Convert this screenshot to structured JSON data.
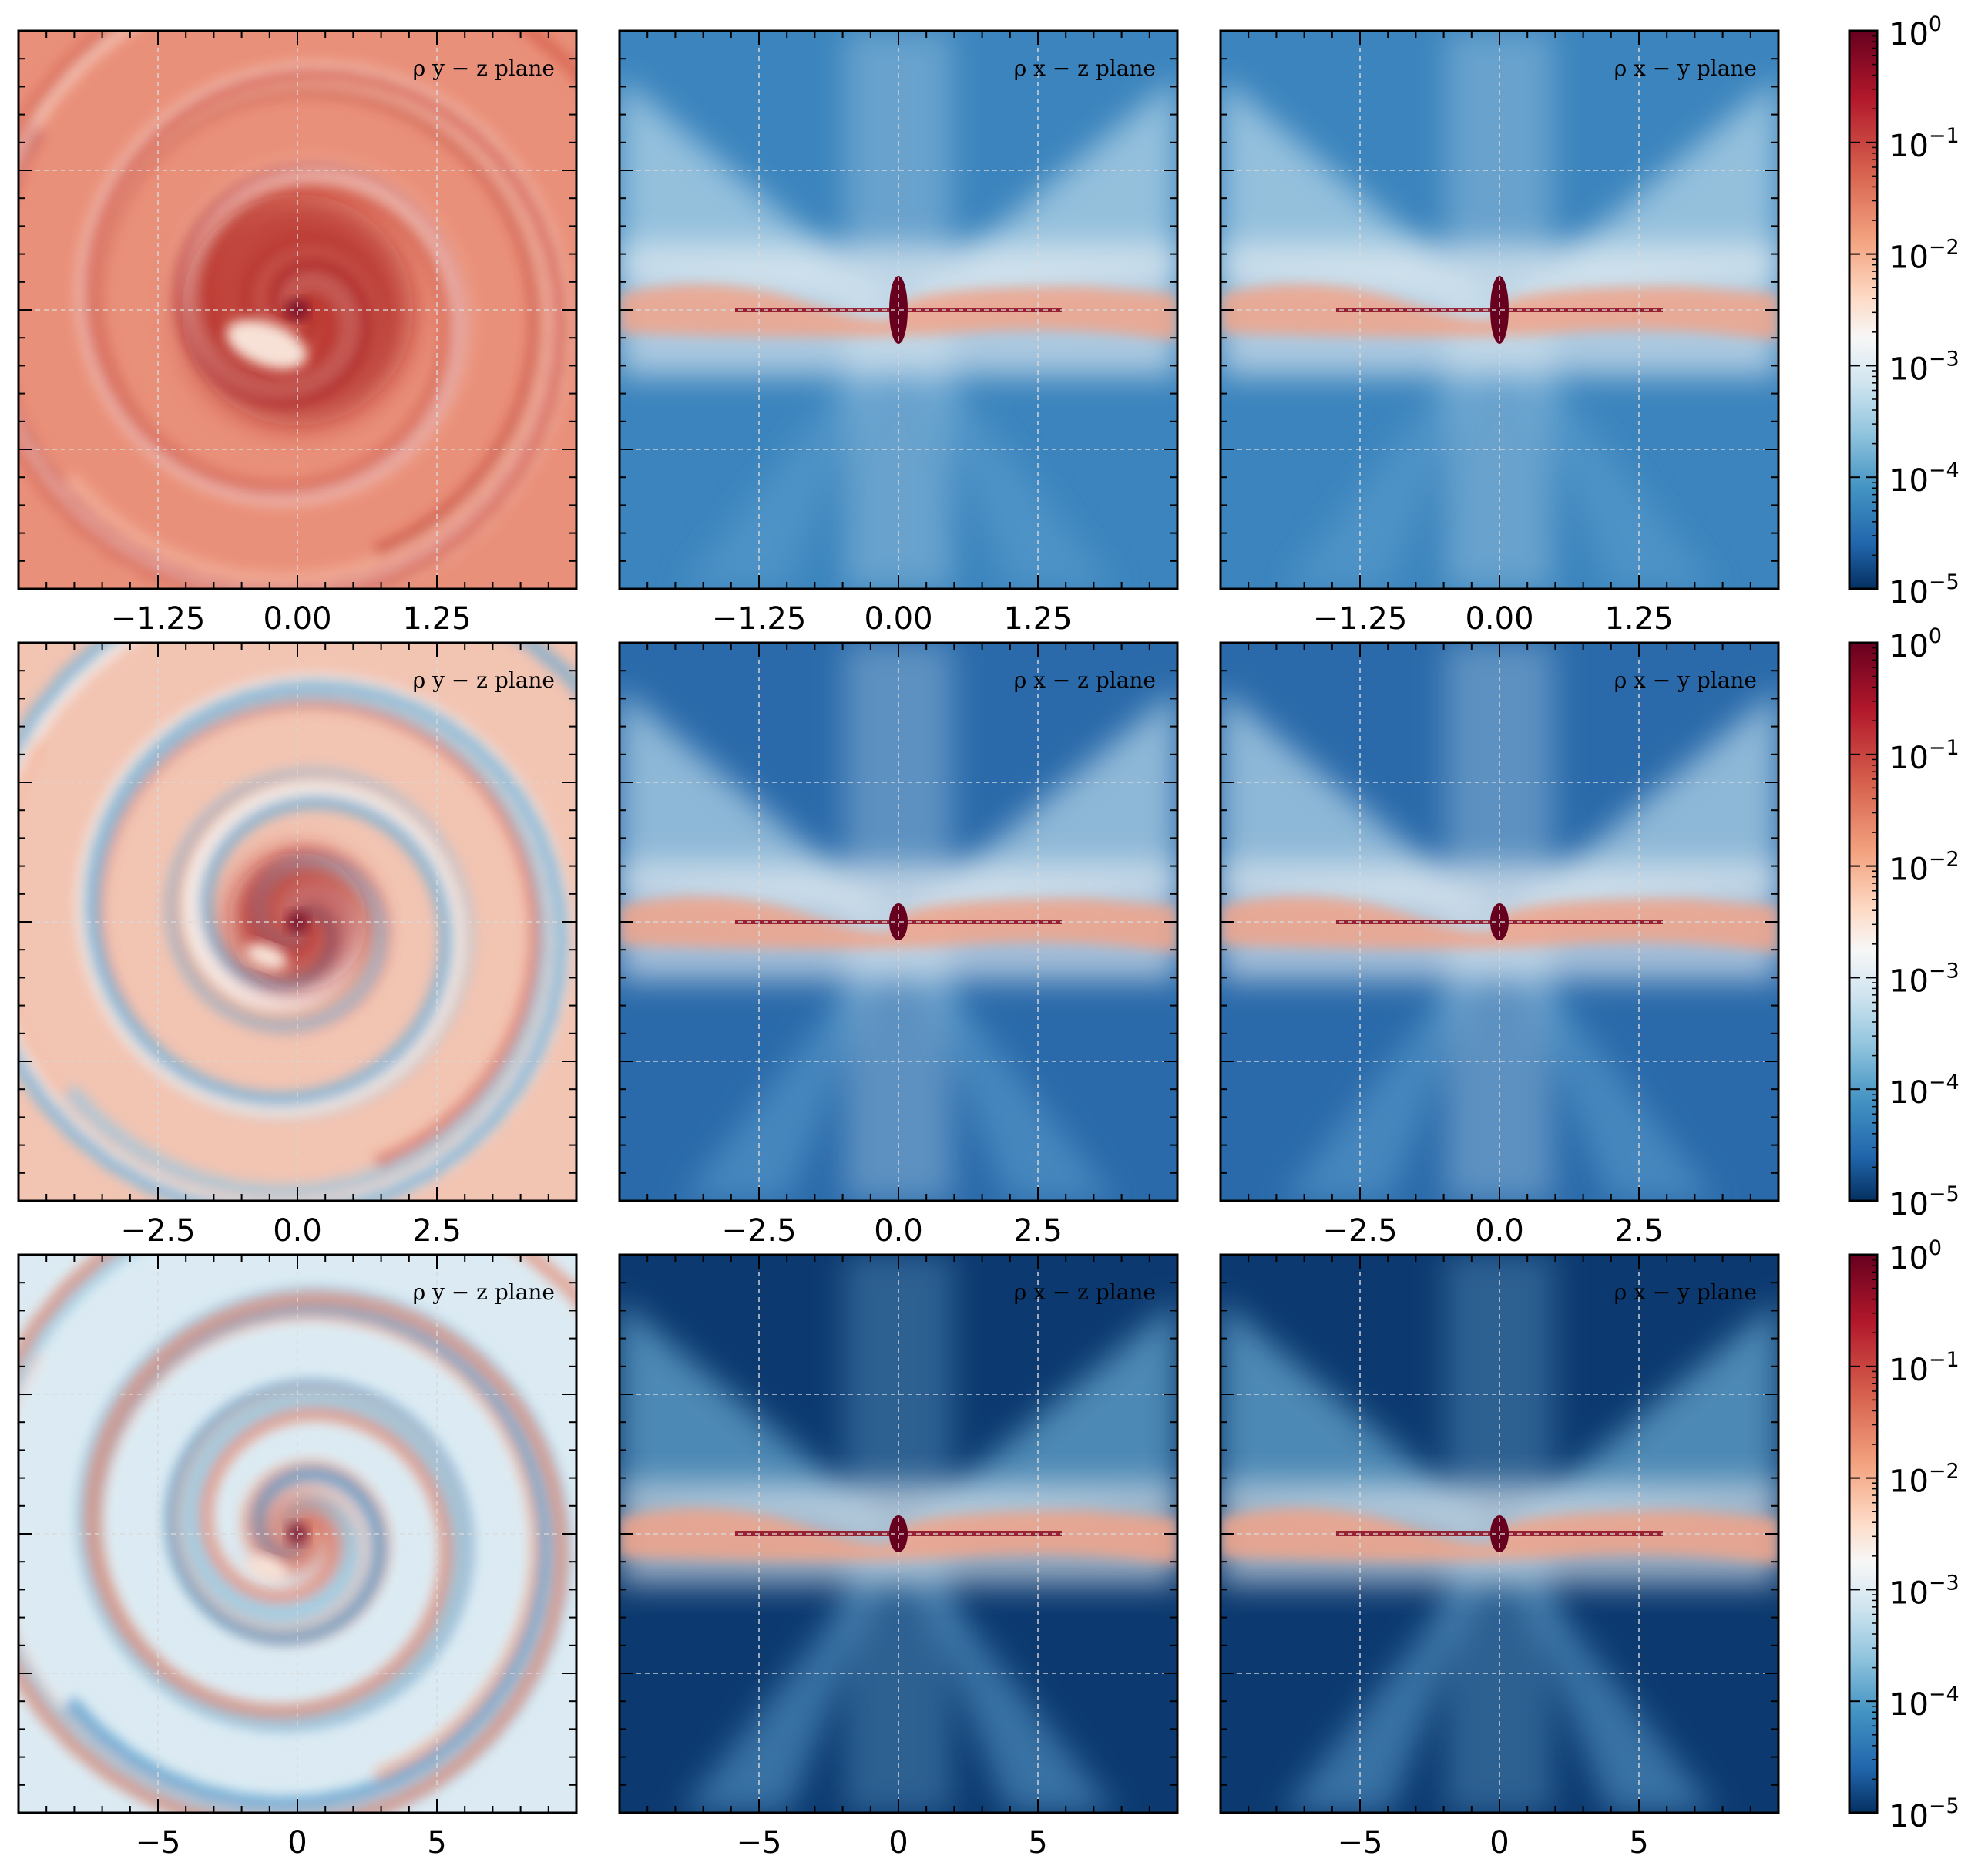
{
  "figure": {
    "rows": [
      {
        "panels": [
          {
            "label": "ρ y − z plane",
            "theme": "red-spiral"
          },
          {
            "label": "ρ x − z plane",
            "theme": "blue-disk"
          },
          {
            "label": "ρ x − y plane",
            "theme": "blue-disk"
          }
        ],
        "xticks": [
          "−1.25",
          "0.00",
          "1.25"
        ],
        "colorbar": {
          "ticks": [
            "10",
            "10",
            "10",
            "10",
            "10",
            "10"
          ],
          "exps": [
            "0",
            "−1",
            "−2",
            "−3",
            "−4",
            "−5"
          ]
        }
      },
      {
        "panels": [
          {
            "label": "ρ y − z plane",
            "theme": "mixed-spiral"
          },
          {
            "label": "ρ x − z plane",
            "theme": "blue-disk-dark"
          },
          {
            "label": "ρ x − y plane",
            "theme": "blue-disk-dark"
          }
        ],
        "xticks": [
          "−2.5",
          "0.0",
          "2.5"
        ],
        "colorbar": {
          "ticks": [
            "10",
            "10",
            "10",
            "10",
            "10",
            "10"
          ],
          "exps": [
            "0",
            "−1",
            "−2",
            "−3",
            "−4",
            "−5"
          ]
        }
      },
      {
        "panels": [
          {
            "label": "ρ y − z plane",
            "theme": "light-spiral"
          },
          {
            "label": "ρ x − z plane",
            "theme": "blue-disk-darker"
          },
          {
            "label": "ρ x − y plane",
            "theme": "blue-disk-darker"
          }
        ],
        "xticks": [
          "−5",
          "0",
          "5"
        ],
        "colorbar": {
          "ticks": [
            "10",
            "10",
            "10",
            "10",
            "10",
            "10"
          ],
          "exps": [
            "0",
            "−1",
            "−2",
            "−3",
            "−4",
            "−5"
          ]
        }
      }
    ],
    "colors": {
      "cmap_top": "#67001f",
      "cmap_red": "#d6604d",
      "cmap_pink": "#f4a582",
      "cmap_white": "#f7f7f7",
      "cmap_lightblue": "#92c5de",
      "cmap_blue": "#4393c3",
      "cmap_bottom": "#053061"
    }
  },
  "chart_data": {
    "type": "heatmap",
    "title": "",
    "quantity": "ρ",
    "colorbar_scale": "log",
    "colorbar_range": [
      1e-05,
      1
    ],
    "colorbar_ticks": [
      "10^0",
      "10^-1",
      "10^-2",
      "10^-3",
      "10^-4",
      "10^-5"
    ],
    "grid": true,
    "rows": [
      {
        "x_ticks": [
          -1.25,
          0.0,
          1.25
        ],
        "xlim": [
          -2,
          2
        ],
        "ylim": [
          -2,
          2
        ],
        "panels": [
          "ρ y − z plane",
          "ρ x − z plane",
          "ρ x − y plane"
        ]
      },
      {
        "x_ticks": [
          -2.5,
          0.0,
          2.5
        ],
        "xlim": [
          -5,
          5
        ],
        "ylim": [
          -5,
          5
        ],
        "panels": [
          "ρ y − z plane",
          "ρ x − z plane",
          "ρ x − y plane"
        ]
      },
      {
        "x_ticks": [
          -5,
          0,
          5
        ],
        "xlim": [
          -10,
          10
        ],
        "ylim": [
          -10,
          10
        ],
        "panels": [
          "ρ y − z plane",
          "ρ x − z plane",
          "ρ x − y plane"
        ]
      }
    ]
  }
}
